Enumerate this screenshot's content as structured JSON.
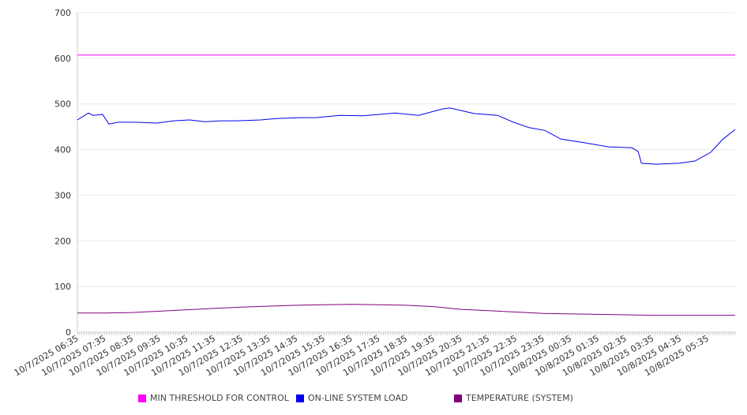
{
  "chart_data": {
    "type": "line",
    "ylim": [
      0,
      700
    ],
    "yticks": [
      0,
      100,
      200,
      300,
      400,
      500,
      600,
      700
    ],
    "x_unit": "hours since 10/7/2025 06:35",
    "xlim": [
      0,
      24
    ],
    "xtick_labels": [
      "10/7/2025 06:35",
      "10/7/2025 07:35",
      "10/7/2025 08:35",
      "10/7/2025 09:35",
      "10/7/2025 10:35",
      "10/7/2025 11:35",
      "10/7/2025 12:35",
      "10/7/2025 13:35",
      "10/7/2025 14:35",
      "10/7/2025 15:35",
      "10/7/2025 16:35",
      "10/7/2025 17:35",
      "10/7/2025 18:35",
      "10/7/2025 19:35",
      "10/7/2025 20:35",
      "10/7/2025 21:35",
      "10/7/2025 22:35",
      "10/7/2025 23:35",
      "10/8/2025 00:35",
      "10/8/2025 01:35",
      "10/8/2025 02:35",
      "10/8/2025 03:35",
      "10/8/2025 04:35",
      "10/8/2025 05:35"
    ],
    "grid": true,
    "legend_position": "bottom",
    "series": [
      {
        "name": "MIN THRESHOLD FOR CONTROL",
        "color": "#ff00ff",
        "x": [
          0,
          24
        ],
        "values": [
          607,
          607
        ]
      },
      {
        "name": "ON-LINE SYSTEM LOAD",
        "color": "#0000ee",
        "x": [
          0,
          0.4,
          0.58,
          0.92,
          1.15,
          1.5,
          2.07,
          2.9,
          3.52,
          4.09,
          4.67,
          5.24,
          5.82,
          6.69,
          7.26,
          8.12,
          8.7,
          9.57,
          10.43,
          11.59,
          12.45,
          13.31,
          13.6,
          14.47,
          15.33,
          15.91,
          16.48,
          17.06,
          17.64,
          18.5,
          19.37,
          20.23,
          20.46,
          20.58,
          21.1,
          21.96,
          22.54,
          23.11,
          23.54,
          24
        ],
        "values": [
          465,
          480,
          475,
          477,
          456,
          460,
          460,
          458,
          463,
          465,
          461,
          463,
          463,
          465,
          468,
          470,
          470,
          475,
          474,
          480,
          475,
          489,
          491,
          479,
          475,
          460,
          448,
          442,
          423,
          415,
          406,
          404,
          396,
          370,
          368,
          370,
          375,
          394,
          422,
          444
        ]
      },
      {
        "name": "TEMPERATURE (SYSTEM)",
        "color": "#800080",
        "x": [
          0,
          1,
          2,
          3,
          4,
          5,
          6,
          7,
          8,
          9,
          10,
          11,
          12,
          13,
          14,
          15,
          16,
          17,
          18,
          19,
          20,
          21,
          22,
          23,
          24
        ],
        "values": [
          42,
          42,
          43,
          46,
          49,
          52,
          55,
          57,
          59,
          60,
          61,
          60,
          59,
          56,
          50,
          47,
          44,
          41,
          40,
          39,
          38,
          37,
          37,
          37,
          37
        ]
      }
    ]
  }
}
